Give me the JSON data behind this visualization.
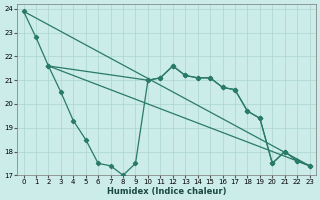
{
  "xlabel": "Humidex (Indice chaleur)",
  "background_color": "#ccecea",
  "grid_color": "#aad4d0",
  "line_color": "#2a7a68",
  "xlim": [
    -0.5,
    23.5
  ],
  "ylim": [
    17,
    24.2
  ],
  "yticks": [
    17,
    18,
    19,
    20,
    21,
    22,
    23,
    24
  ],
  "xticks": [
    0,
    1,
    2,
    3,
    4,
    5,
    6,
    7,
    8,
    9,
    10,
    11,
    12,
    13,
    14,
    15,
    16,
    17,
    18,
    19,
    20,
    21,
    22,
    23
  ],
  "line_A_x": [
    0,
    1,
    2,
    3,
    4,
    5,
    6,
    7,
    8,
    9,
    10,
    11,
    12,
    13,
    14,
    15,
    16,
    17,
    18,
    19,
    20,
    21,
    22,
    23
  ],
  "line_A_y": [
    23.9,
    22.8,
    21.6,
    20.5,
    19.3,
    18.5,
    17.5,
    17.4,
    17.0,
    17.5,
    21.0,
    21.1,
    21.6,
    21.2,
    21.1,
    21.1,
    20.7,
    20.6,
    19.7,
    19.4,
    17.5,
    18.0,
    17.6,
    17.4
  ],
  "line_B_x": [
    2,
    10,
    11,
    12,
    13,
    14,
    15,
    16,
    17,
    18,
    19,
    20,
    21,
    22,
    23
  ],
  "line_B_y": [
    21.6,
    21.0,
    21.1,
    21.6,
    21.2,
    21.1,
    21.1,
    20.7,
    20.6,
    19.7,
    19.4,
    17.5,
    18.0,
    17.6,
    17.4
  ],
  "trend1_x": [
    0,
    23
  ],
  "trend1_y": [
    23.9,
    17.4
  ],
  "trend2_x": [
    2,
    23
  ],
  "trend2_y": [
    21.6,
    17.4
  ]
}
